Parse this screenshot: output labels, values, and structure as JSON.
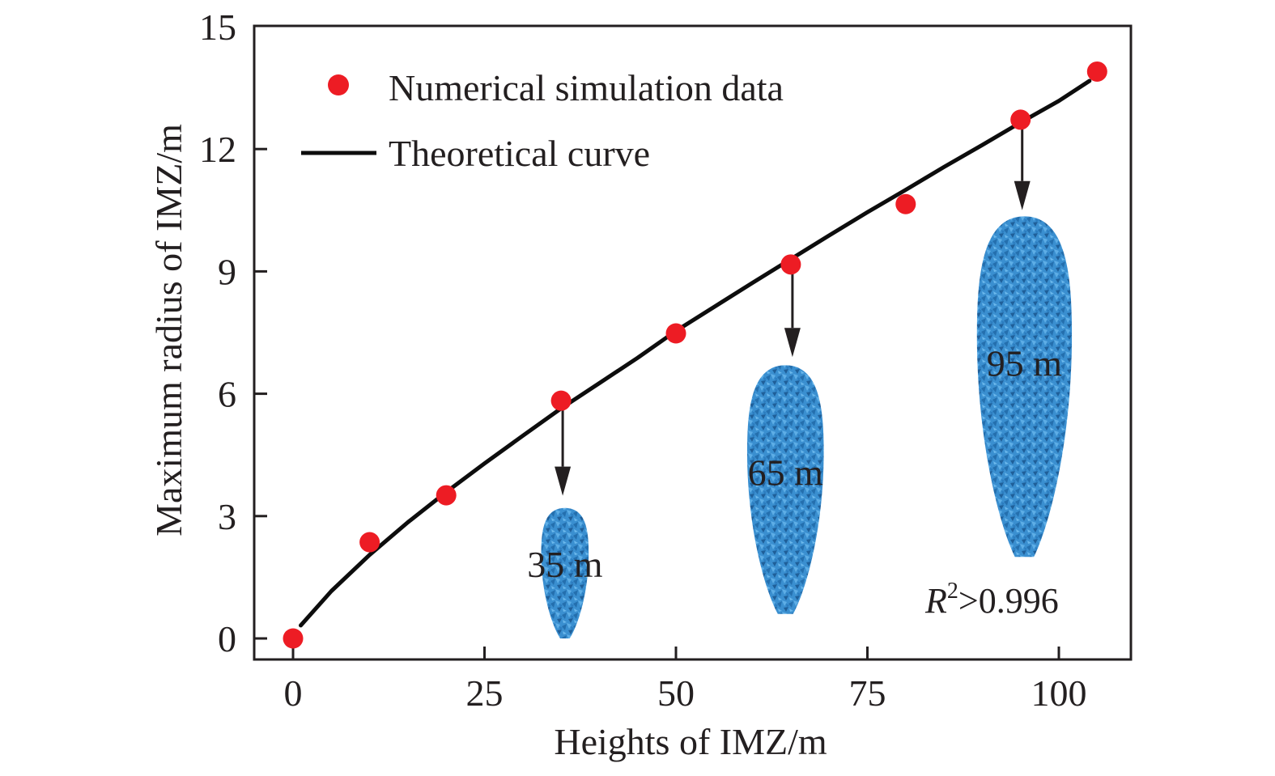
{
  "chart_data": {
    "type": "scatter",
    "title": "",
    "xlabel": "Heights of IMZ/m",
    "ylabel": "Maximum radius of IMZ/m",
    "xlim": [
      -5,
      110
    ],
    "ylim": [
      -0.5,
      15
    ],
    "xticks": [
      0,
      25,
      50,
      75,
      100
    ],
    "xtick_labels": [
      "0",
      "25",
      "50",
      "75",
      "100"
    ],
    "yticks": [
      0,
      3,
      6,
      9,
      12,
      15
    ],
    "ytick_labels": [
      "0",
      "3",
      "6",
      "9",
      "12",
      "15"
    ],
    "grid": false,
    "legend_position": "top-left",
    "series": [
      {
        "name": "Numerical simulation data",
        "kind": "scatter",
        "color": "#ed1c24",
        "x": [
          0,
          10,
          20,
          35,
          50,
          65,
          80,
          95,
          105
        ],
        "y": [
          0.0,
          2.36,
          3.51,
          5.83,
          7.48,
          9.17,
          10.65,
          12.72,
          13.9
        ]
      },
      {
        "name": "Theoretical curve",
        "kind": "line",
        "color": "#000000",
        "x": [
          1,
          5,
          10,
          15,
          20,
          25,
          30,
          35,
          40,
          45,
          50,
          55,
          60,
          65,
          70,
          75,
          80,
          85,
          90,
          95,
          100,
          104
        ],
        "y": [
          0.32,
          1.16,
          2.05,
          2.85,
          3.59,
          4.29,
          4.97,
          5.64,
          6.26,
          6.88,
          7.54,
          8.13,
          8.72,
          9.3,
          9.88,
          10.45,
          11.0,
          11.56,
          12.1,
          12.65,
          13.18,
          13.67
        ]
      }
    ],
    "annotations": [
      {
        "type": "arrow",
        "from_x": 35,
        "from_y": 5.83,
        "to_y": 3.5,
        "target": "35 m"
      },
      {
        "type": "arrow",
        "from_x": 65,
        "from_y": 9.17,
        "to_y": 6.9,
        "target": "65 m"
      },
      {
        "type": "arrow",
        "from_x": 95,
        "from_y": 12.72,
        "to_y": 10.5,
        "target": "95 m"
      }
    ],
    "insets": [
      {
        "label": "35 m",
        "center_x": 35.5,
        "top_y": 3.2,
        "bottom_y": 0.0,
        "half_width": 3.1,
        "color": "#2e86c8"
      },
      {
        "label": "65 m",
        "center_x": 64.3,
        "top_y": 6.7,
        "bottom_y": 0.6,
        "half_width": 5.0,
        "color": "#2e86c8"
      },
      {
        "label": "95 m",
        "center_x": 95.5,
        "top_y": 10.35,
        "bottom_y": 2.0,
        "half_width": 6.2,
        "color": "#2e86c8"
      }
    ],
    "fit_text": {
      "prefix": "R",
      "sup": "2",
      "suffix": ">0.996"
    }
  }
}
